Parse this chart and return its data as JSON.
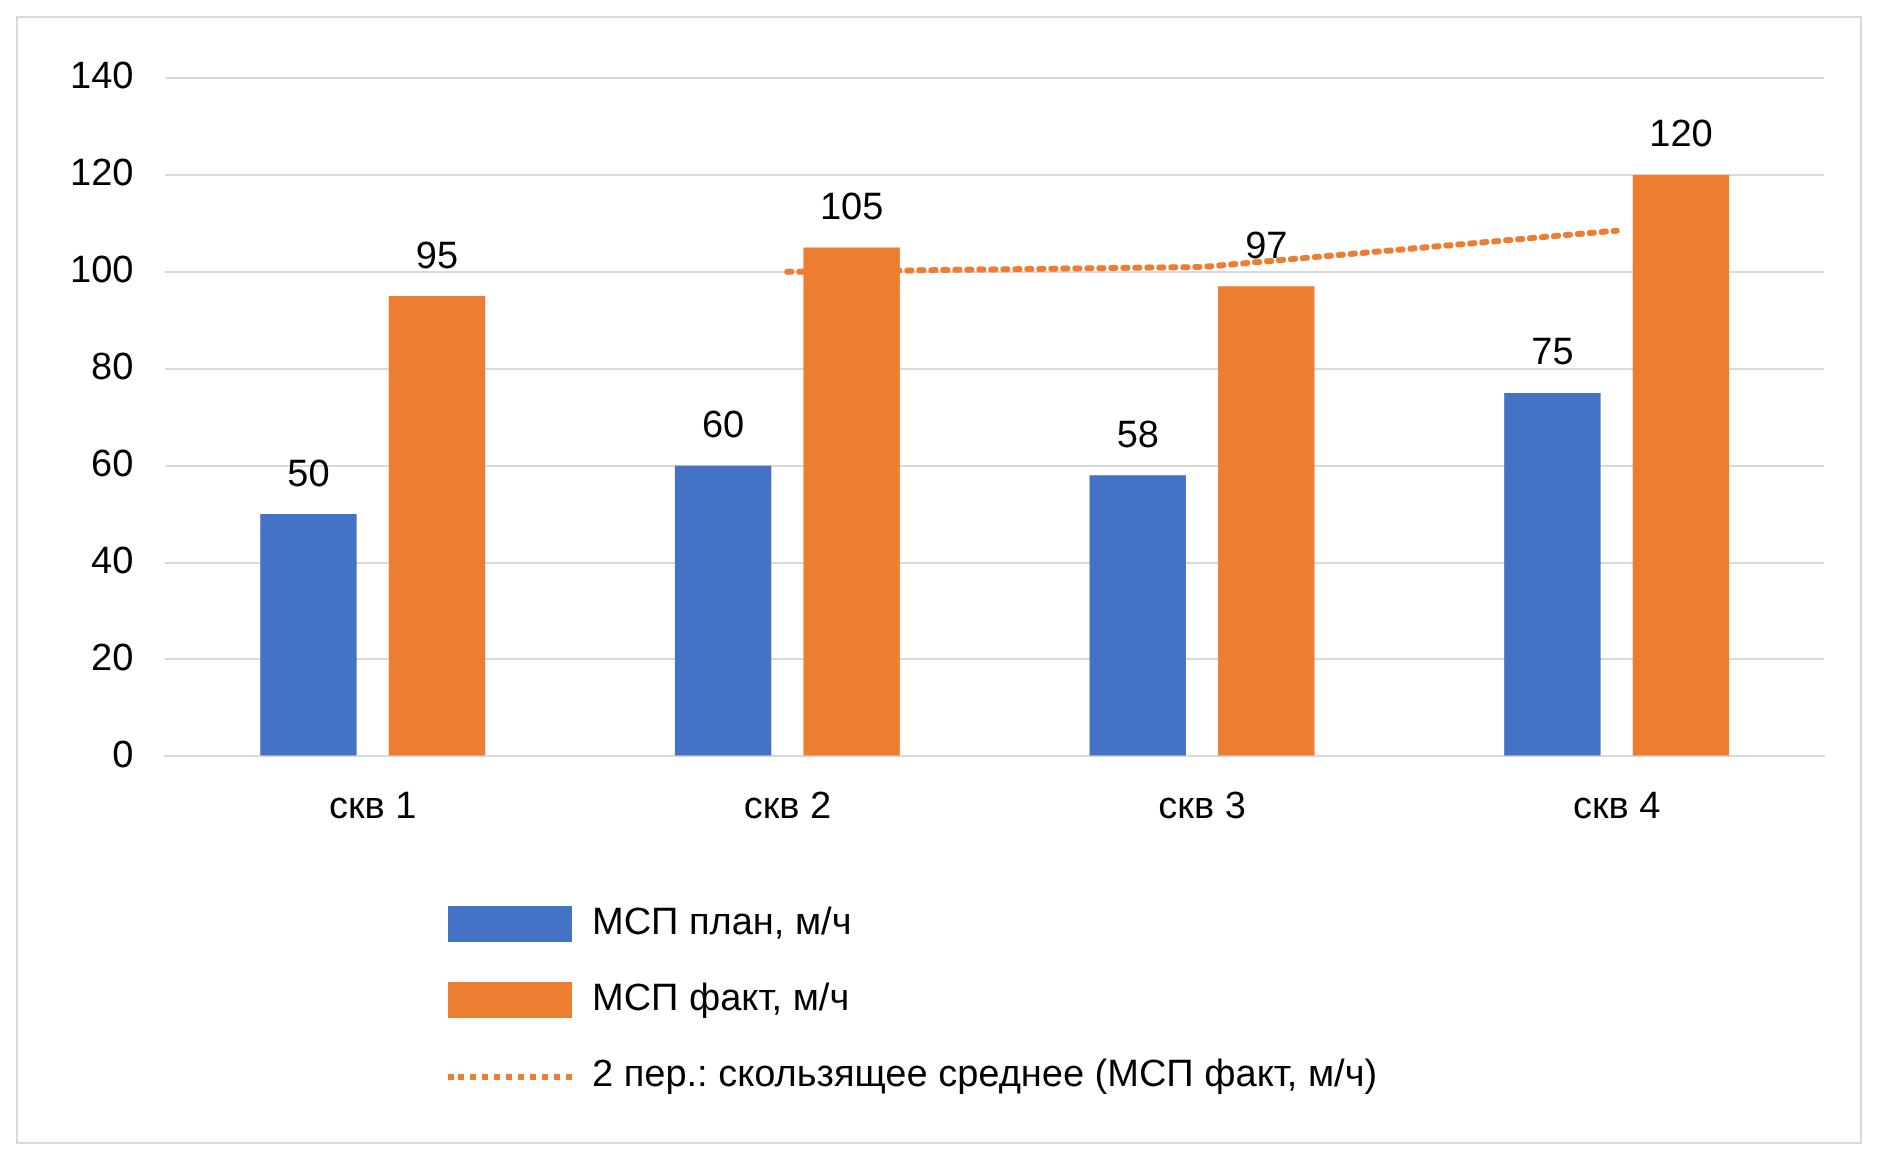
{
  "chart_data": {
    "type": "bar",
    "categories": [
      "скв 1",
      "скв 2",
      "скв 3",
      "скв 4"
    ],
    "series": [
      {
        "name": "МСП план, м/ч",
        "color": "#4472c4",
        "values": [
          50,
          60,
          58,
          75
        ],
        "value_labels": [
          "50",
          "60",
          "58",
          "75"
        ]
      },
      {
        "name": "МСП факт, м/ч",
        "color": "#ed7d31",
        "values": [
          95,
          105,
          97,
          120
        ],
        "value_labels": [
          "95",
          "105",
          "97",
          "120"
        ]
      },
      {
        "name": "2 пер.: скользящее среднее (МСП факт, м/ч)",
        "type": "line",
        "color": "#ed7d31",
        "values": [
          null,
          100,
          101,
          108.5
        ],
        "line_style": "dotted",
        "marker": "none"
      }
    ],
    "ylim": [
      0,
      140
    ],
    "yticks": [
      0,
      20,
      40,
      60,
      80,
      100,
      120,
      140
    ],
    "grid": "y",
    "legend": "bottom"
  }
}
